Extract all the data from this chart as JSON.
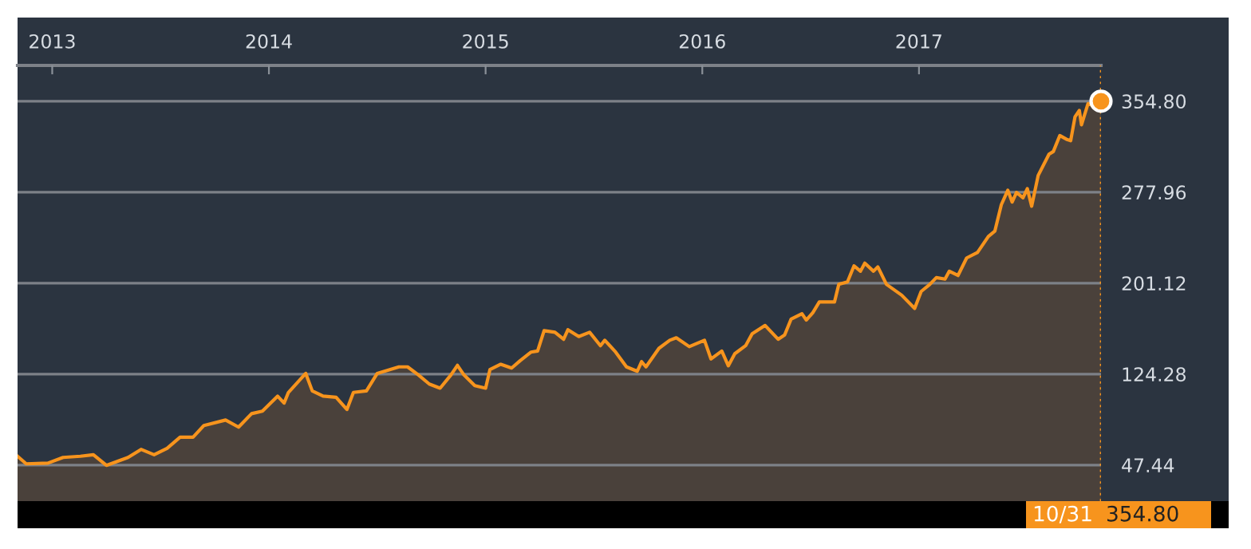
{
  "chart_data": {
    "type": "area",
    "xlim": [
      2012.84,
      2017.84
    ],
    "xticks": [
      2013,
      2014,
      2015,
      2016,
      2017
    ],
    "ylim": [
      17,
      385
    ],
    "yticks": [
      {
        "value": 47.44,
        "label": "47.44"
      },
      {
        "value": 124.28,
        "label": "124.28"
      },
      {
        "value": 201.12,
        "label": "201.12"
      },
      {
        "value": 277.96,
        "label": "277.96"
      },
      {
        "value": 354.8,
        "label": "354.80"
      }
    ],
    "grid": "y",
    "legend": false,
    "marker": "none",
    "line_style": "solid",
    "series": [
      {
        "color": "#f7941d",
        "x": [
          2012.84,
          2012.88,
          2012.98,
          2013.05,
          2013.13,
          2013.19,
          2013.25,
          2013.35,
          2013.41,
          2013.47,
          2013.53,
          2013.59,
          2013.65,
          2013.7,
          2013.8,
          2013.86,
          2013.92,
          2013.97,
          2014.04,
          2014.07,
          2014.09,
          2014.17,
          2014.2,
          2014.25,
          2014.31,
          2014.36,
          2014.39,
          2014.45,
          2014.5,
          2014.6,
          2014.64,
          2014.69,
          2014.74,
          2014.79,
          2014.84,
          2014.87,
          2014.9,
          2014.95,
          2015.0,
          2015.02,
          2015.07,
          2015.12,
          2015.16,
          2015.21,
          2015.24,
          2015.27,
          2015.32,
          2015.36,
          2015.38,
          2015.43,
          2015.48,
          2015.53,
          2015.55,
          2015.6,
          2015.65,
          2015.7,
          2015.72,
          2015.74,
          2015.8,
          2015.85,
          2015.88,
          2015.94,
          2016.01,
          2016.04,
          2016.09,
          2016.12,
          2016.15,
          2016.2,
          2016.23,
          2016.29,
          2016.35,
          2016.38,
          2016.41,
          2016.46,
          2016.48,
          2016.51,
          2016.54,
          2016.61,
          2016.63,
          2016.67,
          2016.7,
          2016.73,
          2016.75,
          2016.79,
          2016.81,
          2016.85,
          2016.92,
          2016.98,
          2017.01,
          2017.05,
          2017.08,
          2017.12,
          2017.14,
          2017.18,
          2017.22,
          2017.27,
          2017.32,
          2017.35,
          2017.38,
          2017.41,
          2017.43,
          2017.45,
          2017.48,
          2017.5,
          2017.52,
          2017.55,
          2017.6,
          2017.62,
          2017.65,
          2017.68,
          2017.7,
          2017.72,
          2017.74,
          2017.75,
          2017.78,
          2017.81,
          2017.84
        ],
        "values": [
          54.9,
          48.5,
          49.1,
          53.9,
          54.9,
          56.2,
          47.2,
          53.9,
          60.7,
          56.2,
          61.6,
          71.0,
          71.0,
          80.9,
          85.5,
          79.5,
          90.9,
          93.0,
          105.7,
          99.8,
          108.8,
          124.9,
          110.1,
          105.7,
          104.7,
          94.4,
          108.8,
          110.1,
          124.9,
          130.4,
          130.4,
          123.6,
          115.9,
          112.4,
          123.6,
          131.7,
          123.6,
          114.6,
          112.4,
          128.1,
          132.6,
          129.4,
          135.7,
          142.9,
          143.8,
          161.0,
          159.6,
          153.7,
          161.8,
          156.0,
          159.6,
          148.3,
          152.9,
          142.9,
          130.4,
          126.7,
          134.8,
          130.4,
          146.1,
          152.9,
          155.0,
          147.5,
          152.9,
          137.1,
          143.8,
          131.3,
          141.5,
          148.3,
          158.3,
          165.4,
          153.7,
          157.3,
          170.8,
          175.3,
          169.9,
          176.2,
          185.2,
          185.2,
          200.1,
          202.2,
          215.7,
          211.2,
          218.0,
          211.2,
          214.9,
          200.1,
          191.0,
          179.8,
          194.1,
          200.1,
          205.8,
          204.5,
          211.2,
          207.6,
          222.4,
          227.0,
          240.5,
          245.0,
          267.4,
          279.6,
          269.6,
          277.7,
          273.2,
          280.9,
          266.1,
          292.1,
          310.0,
          312.3,
          325.8,
          322.7,
          321.4,
          341.6,
          347.0,
          334.8,
          352.8,
          350.5,
          354.8
        ]
      }
    ],
    "annotations": [
      "10/31",
      "354.80"
    ]
  }
}
